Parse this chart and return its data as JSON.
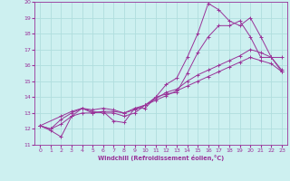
{
  "xlabel": "Windchill (Refroidissement éolien,°C)",
  "bg_color": "#cdf0f0",
  "grid_color": "#b0dede",
  "line_color": "#993399",
  "xlim": [
    -0.5,
    23.5
  ],
  "ylim": [
    11,
    20
  ],
  "xticks": [
    0,
    1,
    2,
    3,
    4,
    5,
    6,
    7,
    8,
    9,
    10,
    11,
    12,
    13,
    14,
    15,
    16,
    17,
    18,
    19,
    20,
    21,
    22,
    23
  ],
  "yticks": [
    11,
    12,
    13,
    14,
    15,
    16,
    17,
    18,
    19,
    20
  ],
  "series": [
    {
      "x": [
        0,
        1,
        2,
        3,
        4,
        5,
        6,
        7,
        8,
        9,
        10,
        11,
        12,
        13,
        14,
        15,
        16,
        17,
        18,
        19,
        20,
        21,
        22,
        23
      ],
      "y": [
        12.2,
        11.9,
        11.5,
        12.8,
        13.3,
        13.0,
        13.1,
        12.5,
        12.4,
        13.3,
        13.3,
        14.0,
        14.8,
        15.2,
        16.5,
        18.0,
        19.9,
        19.5,
        18.8,
        18.5,
        19.0,
        17.8,
        16.5,
        16.5
      ]
    },
    {
      "x": [
        0,
        1,
        2,
        3,
        4,
        5,
        6,
        7,
        8,
        9,
        10,
        11,
        12,
        13,
        14,
        15,
        16,
        17,
        18,
        19,
        20,
        21,
        22,
        23
      ],
      "y": [
        12.2,
        12.0,
        12.6,
        13.0,
        13.3,
        13.1,
        13.0,
        13.0,
        12.8,
        13.0,
        13.5,
        14.0,
        14.2,
        14.3,
        15.5,
        16.8,
        17.8,
        18.5,
        18.5,
        18.8,
        17.8,
        16.5,
        16.5,
        15.6
      ]
    },
    {
      "x": [
        0,
        2,
        3,
        4,
        5,
        6,
        7,
        8,
        9,
        10,
        11,
        12,
        13,
        14,
        15,
        16,
        17,
        18,
        19,
        20,
        21,
        22,
        23
      ],
      "y": [
        12.2,
        12.8,
        13.1,
        13.3,
        13.2,
        13.3,
        13.2,
        13.0,
        13.3,
        13.5,
        13.9,
        14.3,
        14.5,
        15.0,
        15.4,
        15.7,
        16.0,
        16.3,
        16.6,
        17.0,
        16.8,
        16.5,
        15.7
      ]
    },
    {
      "x": [
        0,
        1,
        2,
        3,
        4,
        5,
        6,
        7,
        8,
        9,
        10,
        11,
        12,
        13,
        14,
        15,
        16,
        17,
        18,
        19,
        20,
        21,
        22,
        23
      ],
      "y": [
        12.2,
        12.0,
        12.3,
        12.8,
        13.0,
        13.0,
        13.1,
        13.1,
        13.0,
        13.2,
        13.5,
        13.8,
        14.1,
        14.4,
        14.7,
        15.0,
        15.3,
        15.6,
        15.9,
        16.2,
        16.5,
        16.3,
        16.1,
        15.6
      ]
    }
  ]
}
